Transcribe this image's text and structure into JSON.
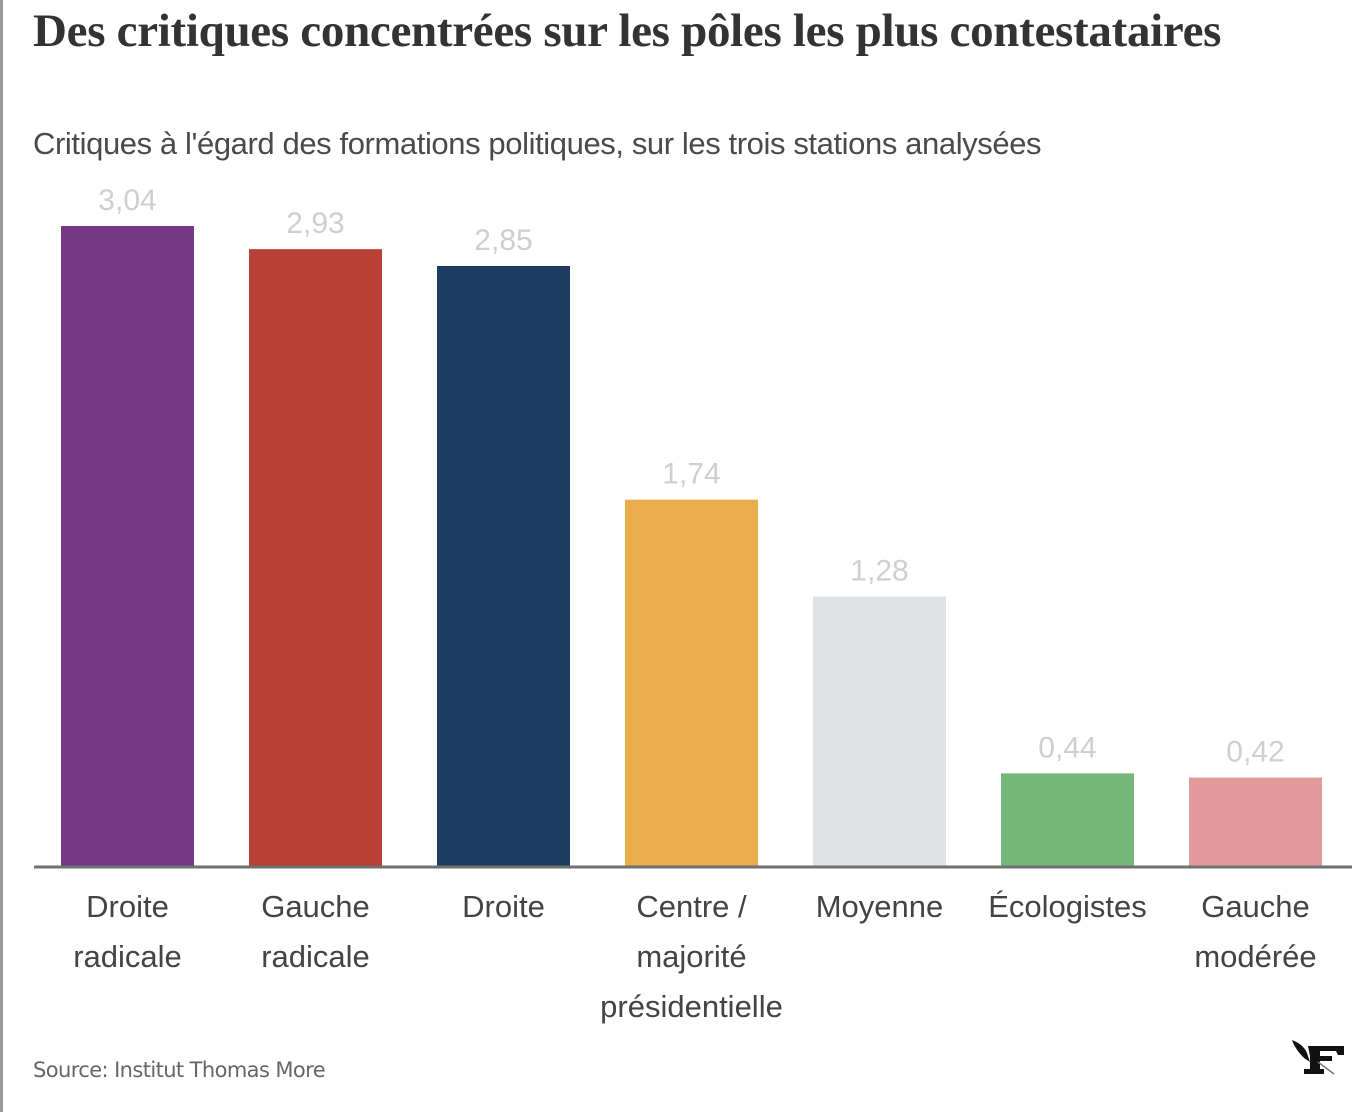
{
  "chart_data": {
    "type": "bar",
    "title": "Des critiques concentrées sur les pôles les plus contestataires",
    "subtitle": "Critiques à l'égard des formations politiques, sur les trois stations analysées",
    "categories": [
      [
        "Droite",
        "radicale"
      ],
      [
        "Gauche",
        "radicale"
      ],
      [
        "Droite"
      ],
      [
        "Centre /",
        "majorité",
        "présidentielle"
      ],
      [
        "Moyenne"
      ],
      [
        "Écologistes"
      ],
      [
        "Gauche",
        "modérée"
      ]
    ],
    "values": [
      3.04,
      2.93,
      2.85,
      1.74,
      1.28,
      0.44,
      0.42
    ],
    "value_labels": [
      "3,04",
      "2,93",
      "2,85",
      "1,74",
      "1,28",
      "0,44",
      "0,42"
    ],
    "colors": [
      "#763787",
      "#b84035",
      "#1e3c62",
      "#e9ad4c",
      "#e1e2e3",
      "#75b779",
      "#e29b9b"
    ],
    "xlabel": "",
    "ylabel": "",
    "ylim": [
      0,
      3.04
    ],
    "grid": false,
    "legend": "none",
    "source": "Source: Institut Thomas More"
  },
  "branding": {
    "logo": "le-figaro-logo-icon"
  }
}
